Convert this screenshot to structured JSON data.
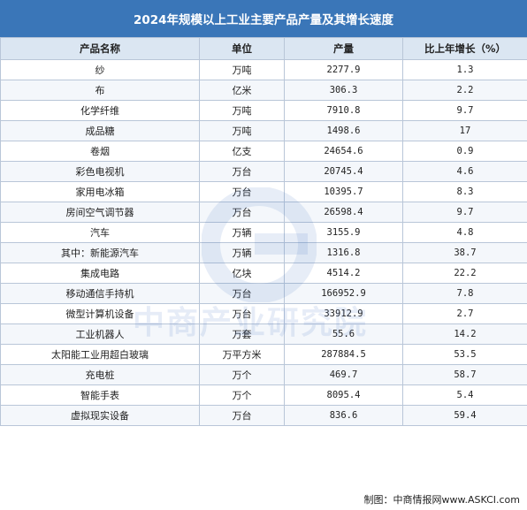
{
  "title": "2024年规模以上工业主要产品产量及其增长速度",
  "headers": [
    "产品名称",
    "单位",
    "产量",
    "比上年增长（%）"
  ],
  "rows": [
    {
      "name": "纱",
      "unit": "万吨",
      "output": "2277.9",
      "growth": "1.3"
    },
    {
      "name": "布",
      "unit": "亿米",
      "output": "306.3",
      "growth": "2.2"
    },
    {
      "name": "化学纤维",
      "unit": "万吨",
      "output": "7910.8",
      "growth": "9.7"
    },
    {
      "name": "成品糖",
      "unit": "万吨",
      "output": "1498.6",
      "growth": "17"
    },
    {
      "name": "卷烟",
      "unit": "亿支",
      "output": "24654.6",
      "growth": "0.9"
    },
    {
      "name": "彩色电视机",
      "unit": "万台",
      "output": "20745.4",
      "growth": "4.6"
    },
    {
      "name": "家用电冰箱",
      "unit": "万台",
      "output": "10395.7",
      "growth": "8.3"
    },
    {
      "name": "房间空气调节器",
      "unit": "万台",
      "output": "26598.4",
      "growth": "9.7"
    },
    {
      "name": "汽车",
      "unit": "万辆",
      "output": "3155.9",
      "growth": "4.8"
    },
    {
      "name": "其中：新能源汽车",
      "unit": "万辆",
      "output": "1316.8",
      "growth": "38.7"
    },
    {
      "name": "集成电路",
      "unit": "亿块",
      "output": "4514.2",
      "growth": "22.2"
    },
    {
      "name": "移动通信手持机",
      "unit": "万台",
      "output": "166952.9",
      "growth": "7.8"
    },
    {
      "name": "微型计算机设备",
      "unit": "万台",
      "output": "33912.9",
      "growth": "2.7"
    },
    {
      "name": "工业机器人",
      "unit": "万套",
      "output": "55.6",
      "growth": "14.2"
    },
    {
      "name": "太阳能工业用超白玻璃",
      "unit": "万平方米",
      "output": "287884.5",
      "growth": "53.5"
    },
    {
      "name": "充电桩",
      "unit": "万个",
      "output": "469.7",
      "growth": "58.7"
    },
    {
      "name": "智能手表",
      "unit": "万个",
      "output": "8095.4",
      "growth": "5.4"
    },
    {
      "name": "虚拟现实设备",
      "unit": "万台",
      "output": "836.6",
      "growth": "59.4"
    }
  ],
  "footer": "制图：中商情报网www.ASKCI.com",
  "watermark": "中商产业研究院",
  "colors": {
    "title_bg": "#3a76b8",
    "header_bg": "#dbe6f2",
    "border": "#b9c6d8"
  }
}
